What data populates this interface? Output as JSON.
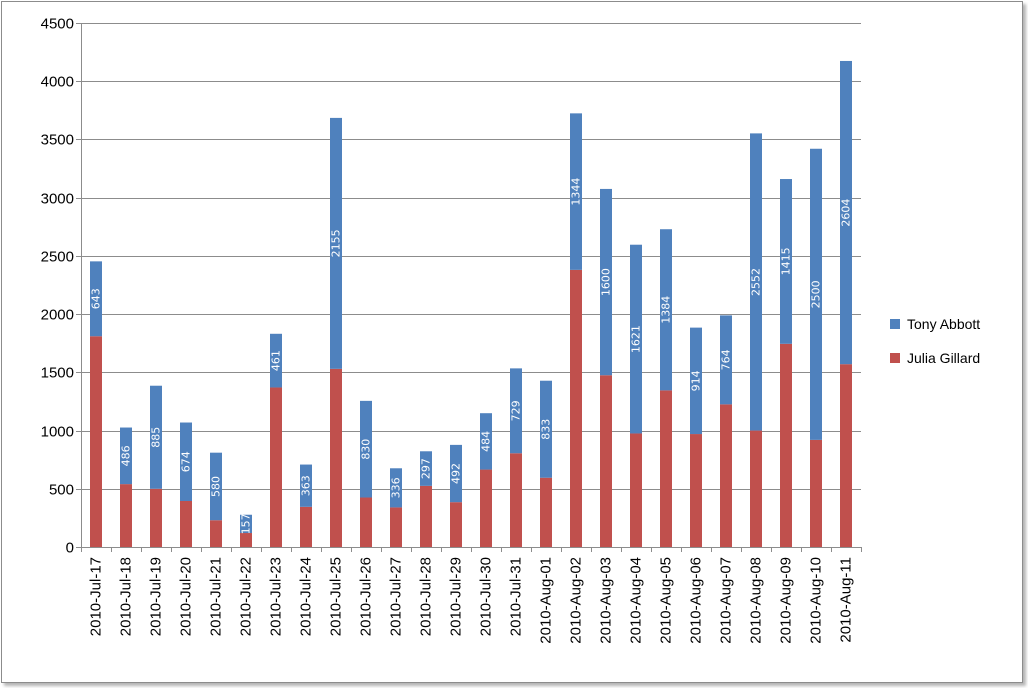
{
  "chart_data": {
    "type": "bar",
    "stacked": true,
    "categories": [
      "2010-Jul-17",
      "2010-Jul-18",
      "2010-Jul-19",
      "2010-Jul-20",
      "2010-Jul-21",
      "2010-Jul-22",
      "2010-Jul-23",
      "2010-Jul-24",
      "2010-Jul-25",
      "2010-Jul-26",
      "2010-Jul-27",
      "2010-Jul-28",
      "2010-Jul-29",
      "2010-Jul-30",
      "2010-Jul-31",
      "2010-Aug-01",
      "2010-Aug-02",
      "2010-Aug-03",
      "2010-Aug-04",
      "2010-Aug-05",
      "2010-Aug-06",
      "2010-Aug-07",
      "2010-Aug-08",
      "2010-Aug-09",
      "2010-Aug-10",
      "2010-Aug-11"
    ],
    "series": [
      {
        "name": "Julia Gillard",
        "color": "#c0504d",
        "values": [
          1810,
          540,
          500,
          395,
          230,
          120,
          1370,
          345,
          1530,
          425,
          340,
          525,
          385,
          665,
          805,
          595,
          2380,
          1475,
          975,
          1345,
          970,
          1225,
          1000,
          1745,
          920,
          1570
        ]
      },
      {
        "name": "Tony Abbott",
        "color": "#4f81bd",
        "values": [
          643,
          486,
          885,
          674,
          580,
          157,
          461,
          363,
          2155,
          830,
          336,
          297,
          492,
          484,
          729,
          833,
          1344,
          1600,
          1621,
          1384,
          914,
          764,
          2552,
          1415,
          2500,
          2604
        ],
        "data_labels": [
          "643",
          "486",
          "885",
          "674",
          "580",
          "157",
          "461",
          "363",
          "2155",
          "830",
          "336",
          "297",
          "492",
          "484",
          "729",
          "833",
          "1344",
          "1600",
          "1621",
          "1384",
          "914",
          "764",
          "2552",
          "1415",
          "2500",
          "2604"
        ]
      }
    ],
    "legend_order": [
      "Tony Abbott",
      "Julia Gillard"
    ],
    "ylim": [
      0,
      4500
    ],
    "yticks": [
      0,
      500,
      1000,
      1500,
      2000,
      2500,
      3000,
      3500,
      4000,
      4500
    ],
    "grid": true,
    "legend_position": "right",
    "title": "",
    "xlabel": "",
    "ylabel": ""
  }
}
